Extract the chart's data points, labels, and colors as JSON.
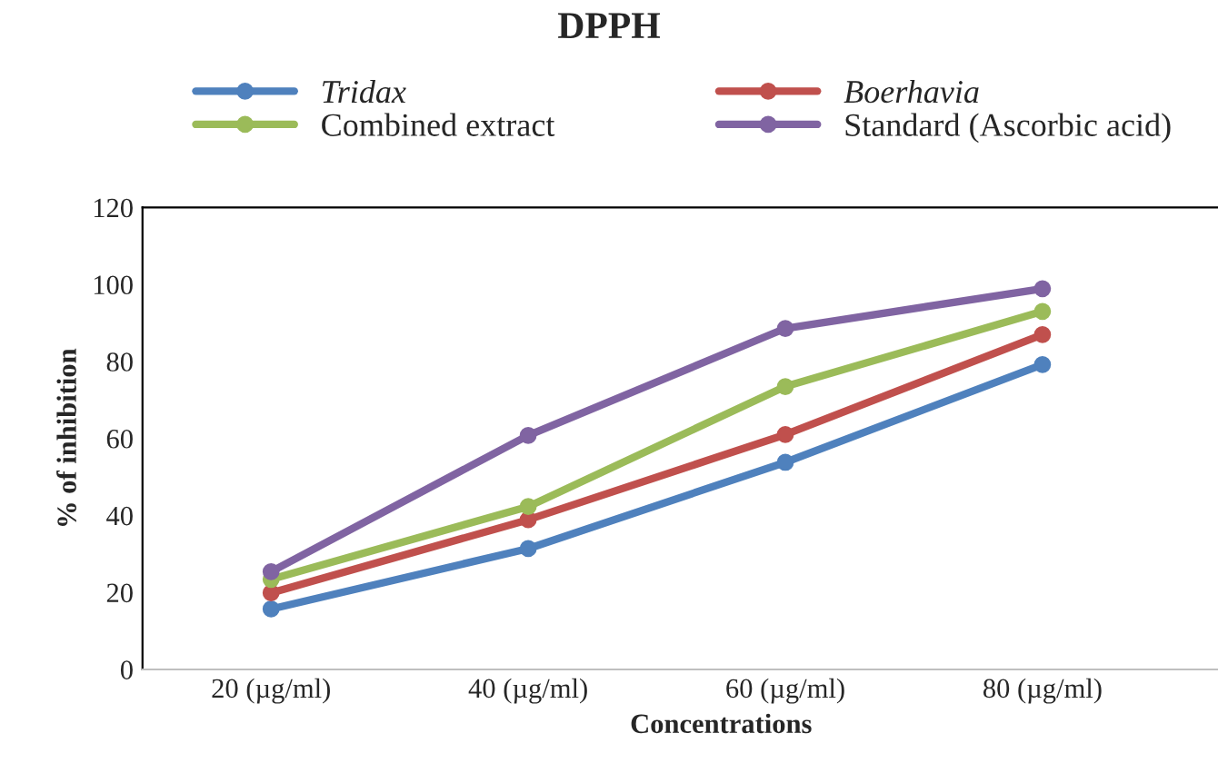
{
  "chart_data": {
    "type": "line",
    "title": "DPPH",
    "xlabel": "Concentrations",
    "ylabel": "% of inhibition",
    "categories": [
      "20 (µg/ml)",
      "40 (µg/ml)",
      "60 (µg/ml)",
      "80 (µg/ml)"
    ],
    "series": [
      {
        "name": "Tridax",
        "color": "#4f81bd",
        "values": [
          15.7,
          31.4,
          53.8,
          79.2
        ]
      },
      {
        "name": "Boerhavia",
        "color": "#c0504d",
        "values": [
          19.9,
          38.9,
          61,
          87
        ]
      },
      {
        "name": "Combined extract",
        "color": "#9bbb59",
        "values": [
          23.4,
          42.3,
          73.5,
          93
        ]
      },
      {
        "name": "Standard (Ascorbic acid)",
        "color": "#8064a2",
        "values": [
          25.4,
          60.8,
          88.6,
          98.9
        ]
      }
    ],
    "ylim": [
      0,
      120
    ],
    "yticks": [
      0,
      20,
      40,
      60,
      80,
      100,
      120
    ],
    "grid": false,
    "legend": "top",
    "marker": "circle",
    "line_style": "solid"
  }
}
